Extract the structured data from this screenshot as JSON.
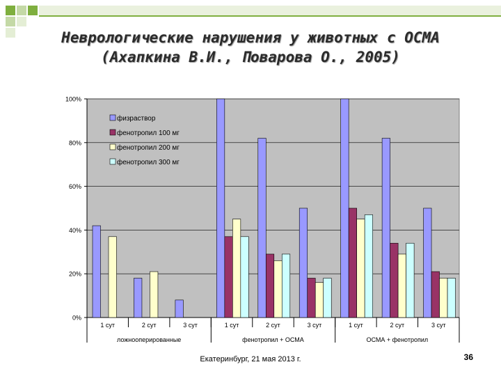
{
  "slide": {
    "title_line1": "Неврологические нарушения у животных с ОСМА",
    "title_line2": "(Ахапкина В.И., Поварова О., 2005)",
    "footer": "Екатеринбург, 21 мая 2013 г.",
    "page_number": "36"
  },
  "colors": {
    "accent_green": "#7faf3f",
    "header_band": "#e9f0d9",
    "plot_background": "#c0c0c0",
    "series": [
      "#9999ff",
      "#993366",
      "#ffffcc",
      "#ccffff"
    ]
  },
  "chart_data": {
    "type": "bar",
    "title": "",
    "xlabel": "",
    "ylabel": "",
    "ylim": [
      0,
      100
    ],
    "y_ticks": [
      "0%",
      "20%",
      "40%",
      "60%",
      "80%",
      "100%"
    ],
    "y_tick_values": [
      0,
      20,
      40,
      60,
      80,
      100
    ],
    "grid": true,
    "legend_position": "top-left",
    "groups": [
      {
        "label": "ложнооперированные",
        "categories": [
          "1 сут",
          "2 сут",
          "3 сут"
        ]
      },
      {
        "label": "фенотропил + ОСМА",
        "categories": [
          "1 сут",
          "2 сут",
          "3 сут"
        ]
      },
      {
        "label": "ОСМА + фенотропил",
        "categories": [
          "1 сут",
          "2 сут",
          "3 сут"
        ]
      }
    ],
    "series": [
      {
        "name": "физраствор",
        "values": [
          42,
          18,
          8,
          100,
          82,
          50,
          100,
          82,
          50
        ]
      },
      {
        "name": "фенотропил 100 мг",
        "values": [
          null,
          null,
          null,
          37,
          29,
          18,
          50,
          34,
          21
        ]
      },
      {
        "name": "фенотропил 200 мг",
        "values": [
          37,
          21,
          null,
          45,
          26,
          16,
          45,
          29,
          18
        ]
      },
      {
        "name": "фенотропил 300 мг",
        "values": [
          null,
          null,
          null,
          37,
          29,
          18,
          47,
          34,
          18
        ]
      }
    ]
  }
}
